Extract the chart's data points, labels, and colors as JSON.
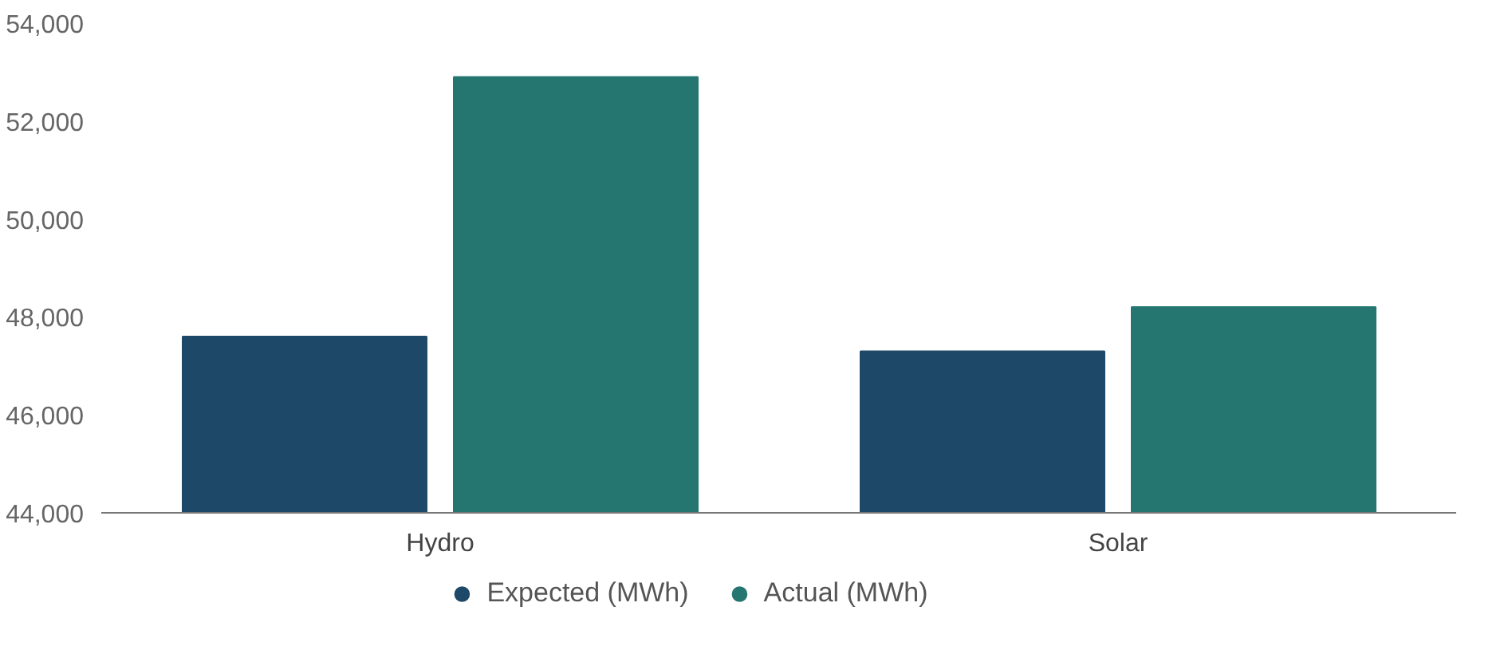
{
  "chart_data": {
    "type": "bar",
    "categories": [
      "Hydro",
      "Solar"
    ],
    "series": [
      {
        "name": "Expected (MWh)",
        "color": "#1e4868",
        "values": [
          47600,
          47300
        ]
      },
      {
        "name": "Actual (MWh)",
        "color": "#257671",
        "values": [
          52900,
          48200
        ]
      }
    ],
    "ylim": [
      44000,
      54000
    ],
    "yticks": [
      {
        "value": 44000,
        "label": "44,000"
      },
      {
        "value": 46000,
        "label": "46,000"
      },
      {
        "value": 48000,
        "label": "48,000"
      },
      {
        "value": 50000,
        "label": "50,000"
      },
      {
        "value": 52000,
        "label": "52,000"
      },
      {
        "value": 54000,
        "label": "54,000"
      }
    ],
    "grid": false,
    "legend": "bottom",
    "marker": "circle"
  }
}
